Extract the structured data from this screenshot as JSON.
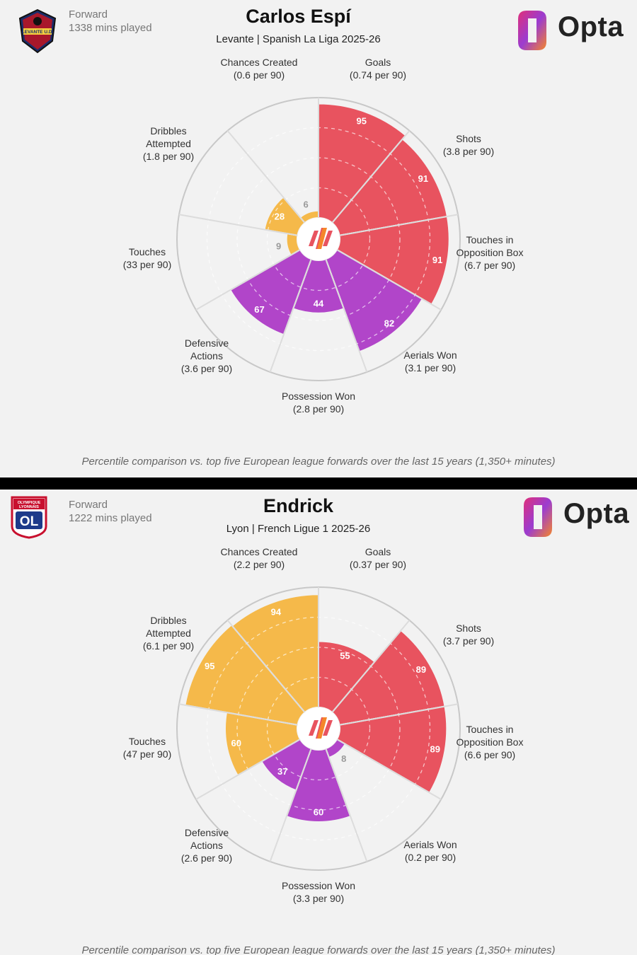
{
  "charts": [
    {
      "position": "Forward",
      "minutes": "1338 mins played",
      "player": "Carlos Espí",
      "team_league": "Levante | Spanish La Liga 2025-26",
      "crest_text": "LEVANTE U.D.",
      "footnote": "Percentile comparison vs. top five European league forwards over the last 15 years (1,350+ minutes)"
    },
    {
      "position": "Forward",
      "minutes": "1222 mins played",
      "player": "Endrick",
      "team_league": "Lyon | French Ligue 1 2025-26",
      "crest_text": "OLYMPIQUE LYONNAIS",
      "crest_mark": "OL",
      "footnote": "Percentile comparison vs. top five European league forwards over the last 15 years (1,350+ minutes)"
    }
  ],
  "brand": "Opta",
  "colors": {
    "attack": "#e8535f",
    "possession": "#b145c9",
    "creation": "#f5b94a",
    "background": "#f2f2f2"
  },
  "chart_data": [
    {
      "type": "radar",
      "title": "Carlos Espí",
      "categories": [
        "Goals\n(0.74 per 90)",
        "Shots\n(3.8 per 90)",
        "Touches in\nOpposition Box\n(6.7 per 90)",
        "Aerials Won\n(3.1 per 90)",
        "Possession Won\n(2.8 per 90)",
        "Defensive\nActions\n(3.6 per 90)",
        "Touches\n(33 per 90)",
        "Dribbles\nAttempted\n(1.8 per 90)",
        "Chances Created\n(0.6 per 90)"
      ],
      "values": [
        95,
        91,
        91,
        82,
        44,
        67,
        9,
        28,
        6
      ],
      "groups": [
        "attack",
        "attack",
        "attack",
        "possession",
        "possession",
        "possession",
        "creation",
        "creation",
        "creation"
      ],
      "value_labels": [
        "95",
        "91",
        "91",
        "82",
        "44",
        "67",
        "9",
        "28",
        "6"
      ],
      "ylim": [
        0,
        100
      ]
    },
    {
      "type": "radar",
      "title": "Endrick",
      "categories": [
        "Goals\n(0.37 per 90)",
        "Shots\n(3.7 per 90)",
        "Touches in\nOpposition Box\n(6.6 per 90)",
        "Aerials Won\n(0.2 per 90)",
        "Possession Won\n(3.3 per 90)",
        "Defensive\nActions\n(2.6 per 90)",
        "Touches\n(47 per 90)",
        "Dribbles\nAttempted\n(6.1 per 90)",
        "Chances Created\n(2.2 per 90)"
      ],
      "values": [
        55,
        89,
        89,
        8,
        60,
        37,
        60,
        95,
        94
      ],
      "groups": [
        "attack",
        "attack",
        "attack",
        "possession",
        "possession",
        "possession",
        "creation",
        "creation",
        "creation"
      ],
      "value_labels": [
        "55",
        "89",
        "89",
        "8",
        "60",
        "37",
        "60",
        "95",
        "94"
      ],
      "ylim": [
        0,
        100
      ]
    }
  ]
}
